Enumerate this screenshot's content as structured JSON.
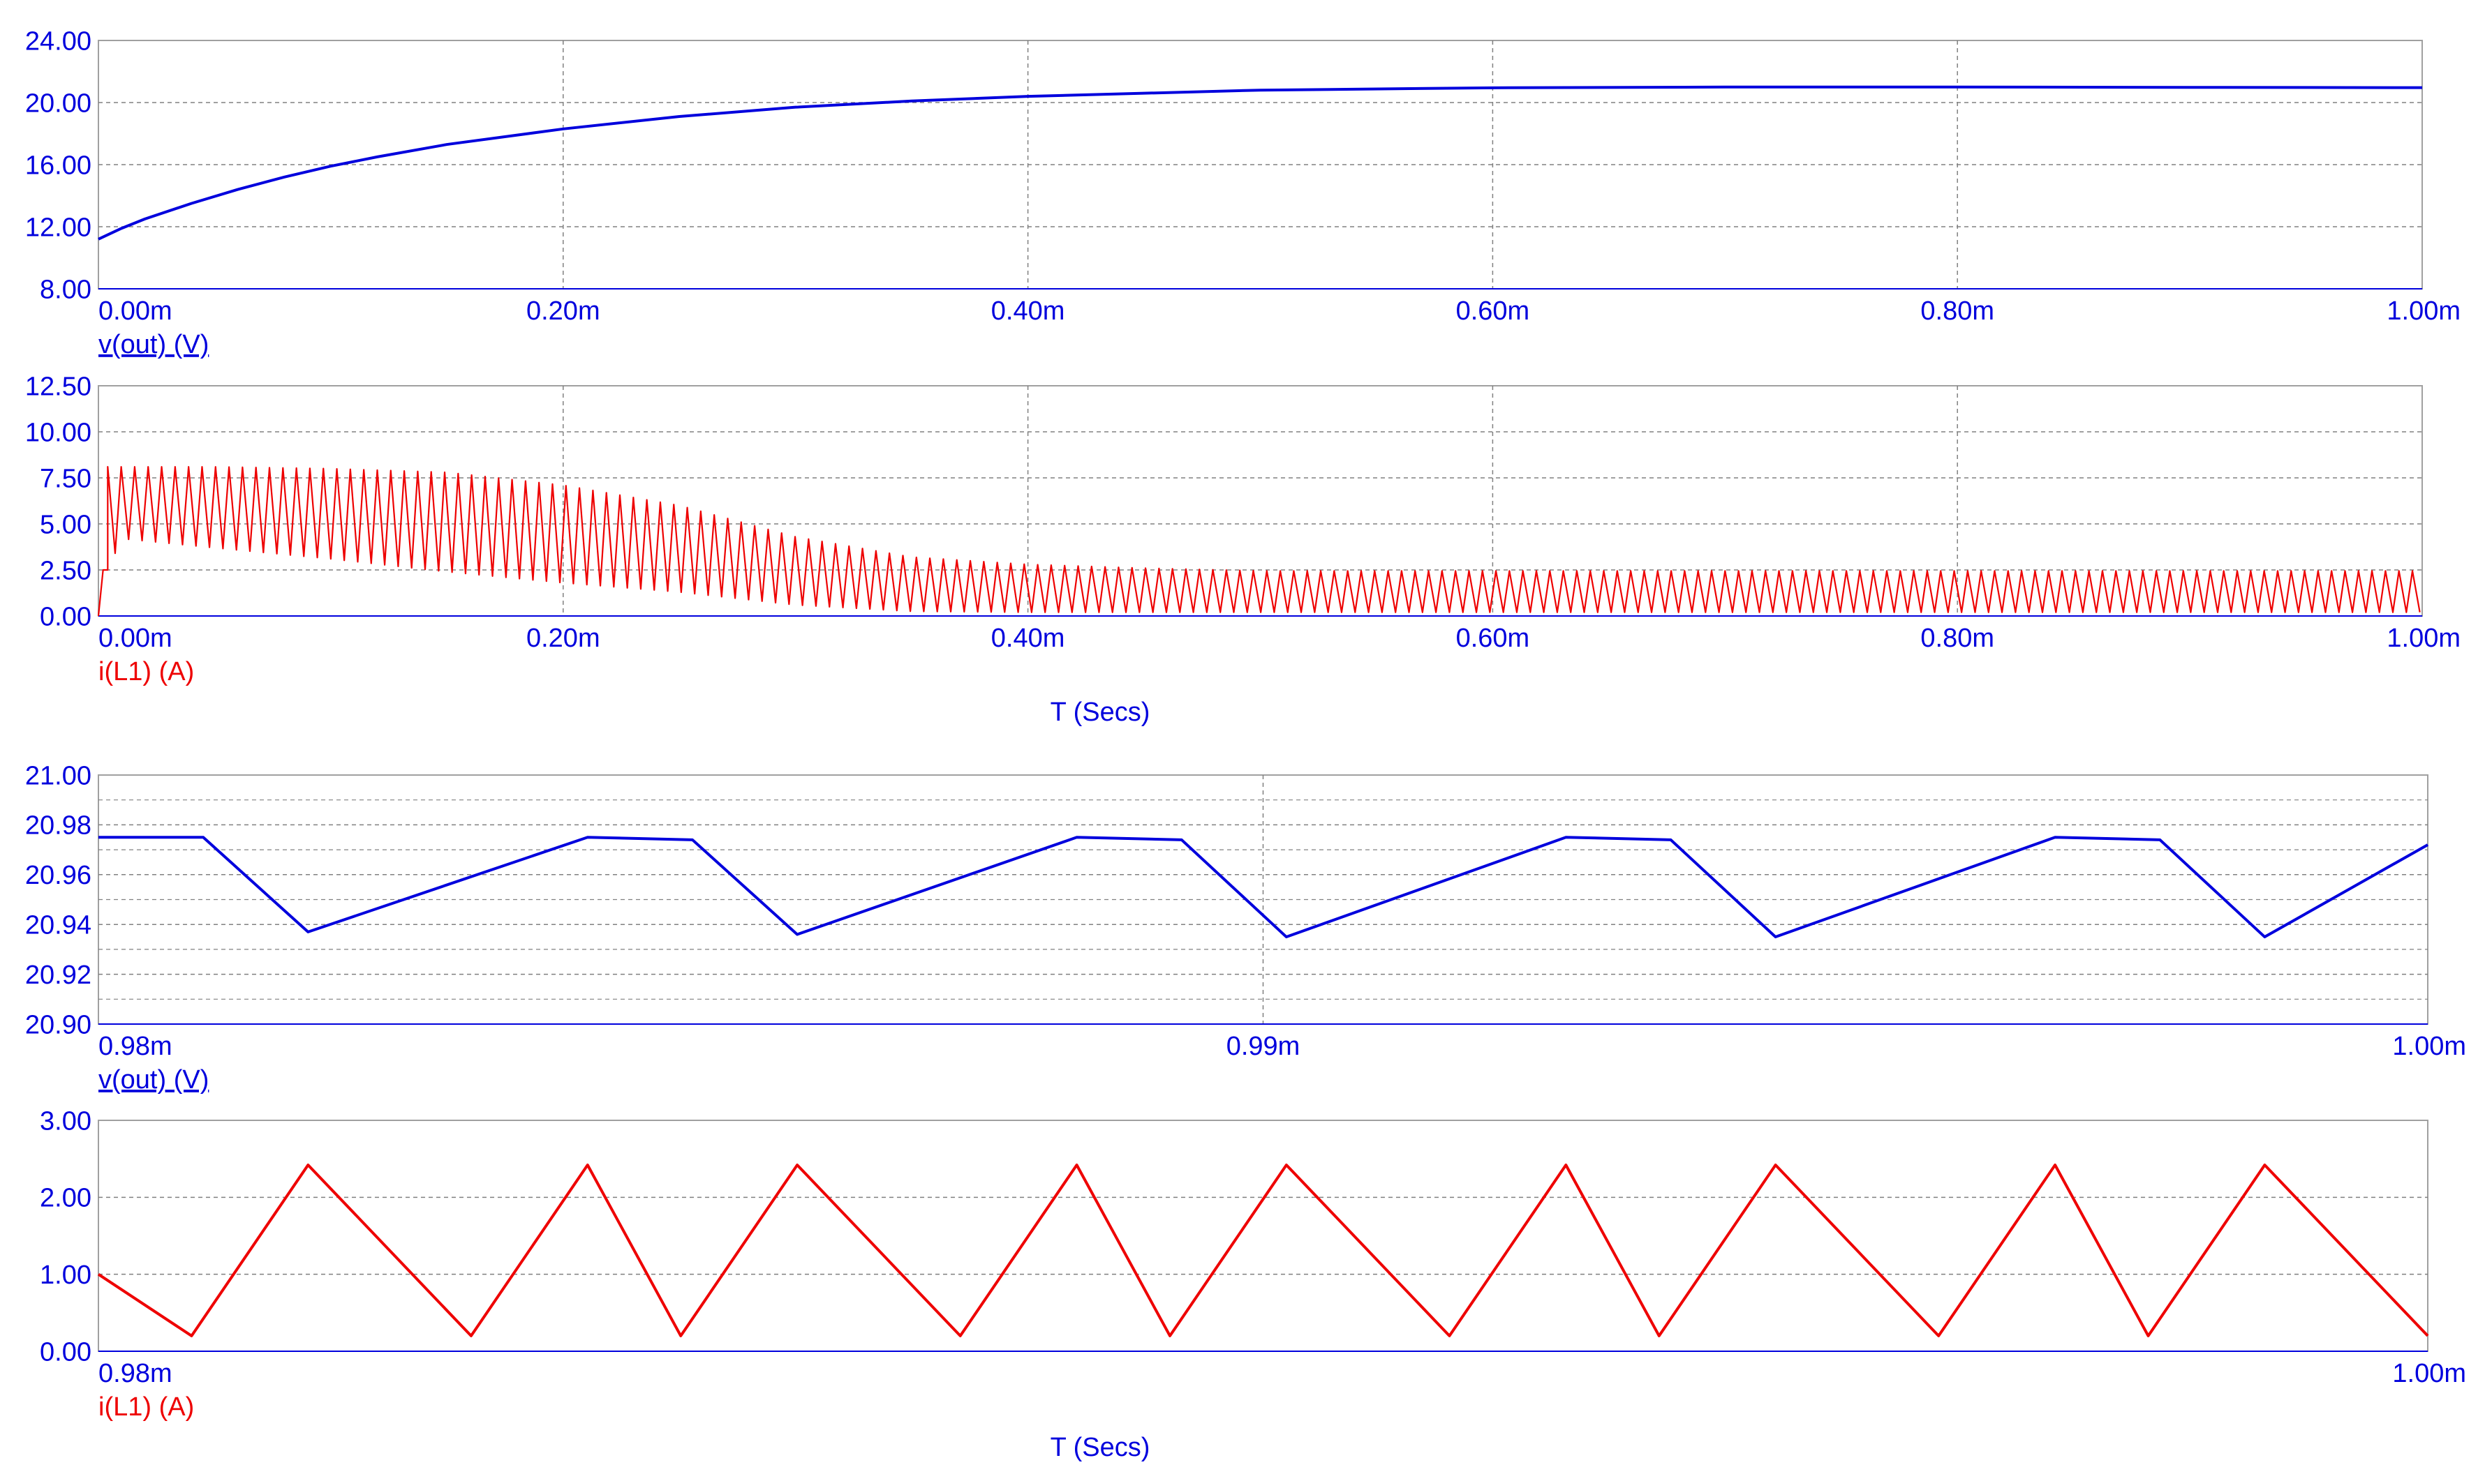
{
  "colors": {
    "voltage": "#0000dd",
    "current": "#ee0000",
    "axis_text": "#0000dd",
    "grid": "#808080",
    "frame": "#a0a0a0"
  },
  "chart_data": [
    {
      "type": "line",
      "id": "vout-full",
      "grid": true,
      "xlim": [
        0,
        1.0
      ],
      "ylim": [
        8,
        24
      ],
      "xunit": "ms",
      "x_tick_values": [
        0,
        0.2,
        0.4,
        0.6,
        0.8,
        1.0
      ],
      "x_tick_labels": [
        "0.00m",
        "0.20m",
        "0.40m",
        "0.60m",
        "0.80m",
        "1.00m"
      ],
      "y_tick_values": [
        8,
        12,
        16,
        20,
        24
      ],
      "y_tick_labels": [
        "8.00",
        "12.00",
        "16.00",
        "20.00",
        "24.00"
      ],
      "trace_label": "v(out) (V)",
      "xlabel": "",
      "series": [
        {
          "name": "v(out) (V)",
          "color": "#0000dd",
          "x": [
            0,
            0.01,
            0.02,
            0.04,
            0.06,
            0.08,
            0.1,
            0.12,
            0.15,
            0.2,
            0.25,
            0.3,
            0.35,
            0.4,
            0.45,
            0.5,
            0.6,
            0.7,
            0.8,
            0.9,
            1.0
          ],
          "y": [
            11.2,
            11.9,
            12.5,
            13.5,
            14.4,
            15.2,
            15.9,
            16.5,
            17.3,
            18.3,
            19.1,
            19.7,
            20.1,
            20.4,
            20.6,
            20.8,
            20.95,
            21.0,
            21.0,
            20.98,
            20.96
          ]
        }
      ]
    },
    {
      "type": "line",
      "id": "il1-full",
      "grid": true,
      "xlim": [
        0,
        1.0
      ],
      "ylim": [
        0,
        12.5
      ],
      "xunit": "ms",
      "x_tick_values": [
        0,
        0.2,
        0.4,
        0.6,
        0.8,
        1.0
      ],
      "x_tick_labels": [
        "0.00m",
        "0.20m",
        "0.40m",
        "0.60m",
        "0.80m",
        "1.00m"
      ],
      "y_tick_values": [
        0,
        2.5,
        5,
        7.5,
        10,
        12.5
      ],
      "y_tick_labels": [
        "0.00",
        "2.50",
        "5.00",
        "7.50",
        "10.00",
        "12.50"
      ],
      "trace_label": "i(L1) (A)",
      "xlabel": "T (Secs)",
      "series": [
        {
          "name": "i(L1) (A)",
          "color": "#ee0000",
          "period": 0.0058,
          "envelope_t": [
            0.004,
            0.01,
            0.05,
            0.1,
            0.15,
            0.2,
            0.25,
            0.3,
            0.35,
            0.4,
            0.45,
            0.5,
            1.0
          ],
          "envelope_max": [
            8.1,
            8.1,
            8.1,
            8.0,
            7.8,
            7.1,
            6.0,
            4.3,
            3.2,
            2.8,
            2.6,
            2.45,
            2.45
          ],
          "envelope_min": [
            2.5,
            4.2,
            3.7,
            3.1,
            2.4,
            1.8,
            1.3,
            0.6,
            0.25,
            0.2,
            0.2,
            0.2,
            0.2
          ],
          "startup_x": [
            0,
            0.002,
            0.004
          ],
          "startup_y": [
            0,
            2.5,
            2.5
          ]
        }
      ]
    },
    {
      "type": "line",
      "id": "vout-zoom",
      "grid": true,
      "xlim": [
        0.98,
        1.0
      ],
      "ylim": [
        20.9,
        21.0
      ],
      "xunit": "ms",
      "x_tick_values": [
        0.98,
        0.99,
        1.0
      ],
      "x_tick_labels": [
        "0.98m",
        "0.99m",
        "1.00m"
      ],
      "y_tick_values": [
        20.9,
        20.92,
        20.94,
        20.96,
        20.98,
        21.0
      ],
      "y_tick_labels": [
        "20.90",
        "20.92",
        "20.94",
        "20.96",
        "20.98",
        "21.00"
      ],
      "trace_label": "v(out) (V)",
      "xlabel": "",
      "series": [
        {
          "name": "v(out) (V)",
          "color": "#0000dd",
          "x": [
            0.98,
            0.9809,
            0.9818,
            0.9842,
            0.9851,
            0.986,
            0.9884,
            0.9893,
            0.9902,
            0.9926,
            0.9935,
            0.9944,
            0.9968,
            0.9977,
            0.9986,
            1.0
          ],
          "y": [
            20.975,
            20.975,
            20.937,
            20.975,
            20.974,
            20.936,
            20.975,
            20.974,
            20.935,
            20.975,
            20.974,
            20.935,
            20.975,
            20.974,
            20.935,
            20.972
          ]
        }
      ]
    },
    {
      "type": "line",
      "id": "il1-zoom",
      "grid": true,
      "xlim": [
        0.98,
        1.0
      ],
      "ylim": [
        0,
        3
      ],
      "xunit": "ms",
      "x_tick_values": [
        0.98,
        1.0
      ],
      "x_tick_labels": [
        "0.98m",
        "1.00m"
      ],
      "y_tick_values": [
        0,
        1,
        2,
        3
      ],
      "y_tick_labels": [
        "0.00",
        "1.00",
        "2.00",
        "3.00"
      ],
      "trace_label": "i(L1) (A)",
      "xlabel": "T (Secs)",
      "series": [
        {
          "name": "i(L1) (A)",
          "color": "#ee0000",
          "x": [
            0.98,
            0.9808,
            0.9818,
            0.9832,
            0.9842,
            0.985,
            0.986,
            0.9874,
            0.9884,
            0.9892,
            0.9902,
            0.9916,
            0.9926,
            0.9934,
            0.9944,
            0.9958,
            0.9968,
            0.9976,
            0.9986,
            1.0
          ],
          "y": [
            1.0,
            0.2,
            2.42,
            0.2,
            2.42,
            0.2,
            2.42,
            0.2,
            2.42,
            0.2,
            2.42,
            0.2,
            2.42,
            0.2,
            2.42,
            0.2,
            2.42,
            0.2,
            2.42,
            0.2
          ]
        }
      ]
    }
  ]
}
